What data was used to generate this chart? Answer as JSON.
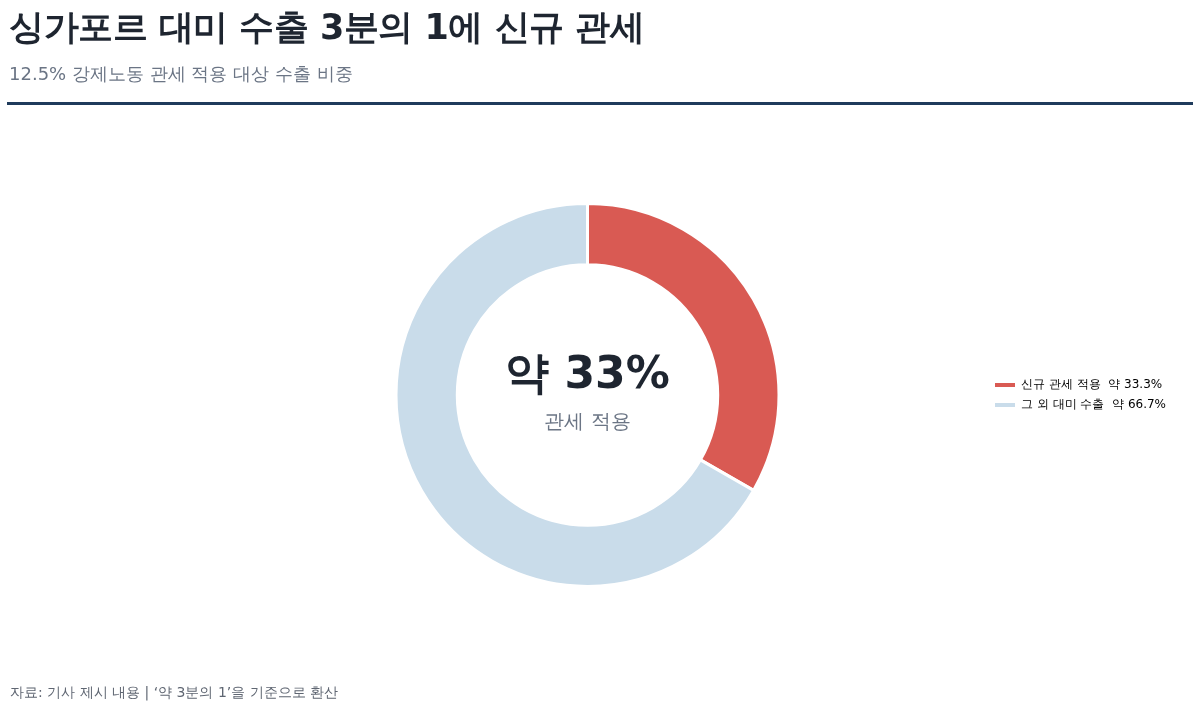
{
  "chart_data": {
    "type": "donut",
    "title": "싱가포르 대미 수출 3분의 1에 신규 관세",
    "subtitle": "12.5% 강제노동 관세 적용 대상 수출 비중",
    "categories": [
      "신규 관세 적용  약 33.3%",
      "그 외 대미 수출  약 66.7%"
    ],
    "values": [
      33.3,
      66.7
    ],
    "colors": [
      "#d95a53",
      "#c9dcea"
    ],
    "legend": "right",
    "annotations": [
      "약 33%",
      "관세 적용",
      "자료: 기사 제시 내용  |  ‘약 3분의 1’을 기준으로 환산"
    ]
  }
}
